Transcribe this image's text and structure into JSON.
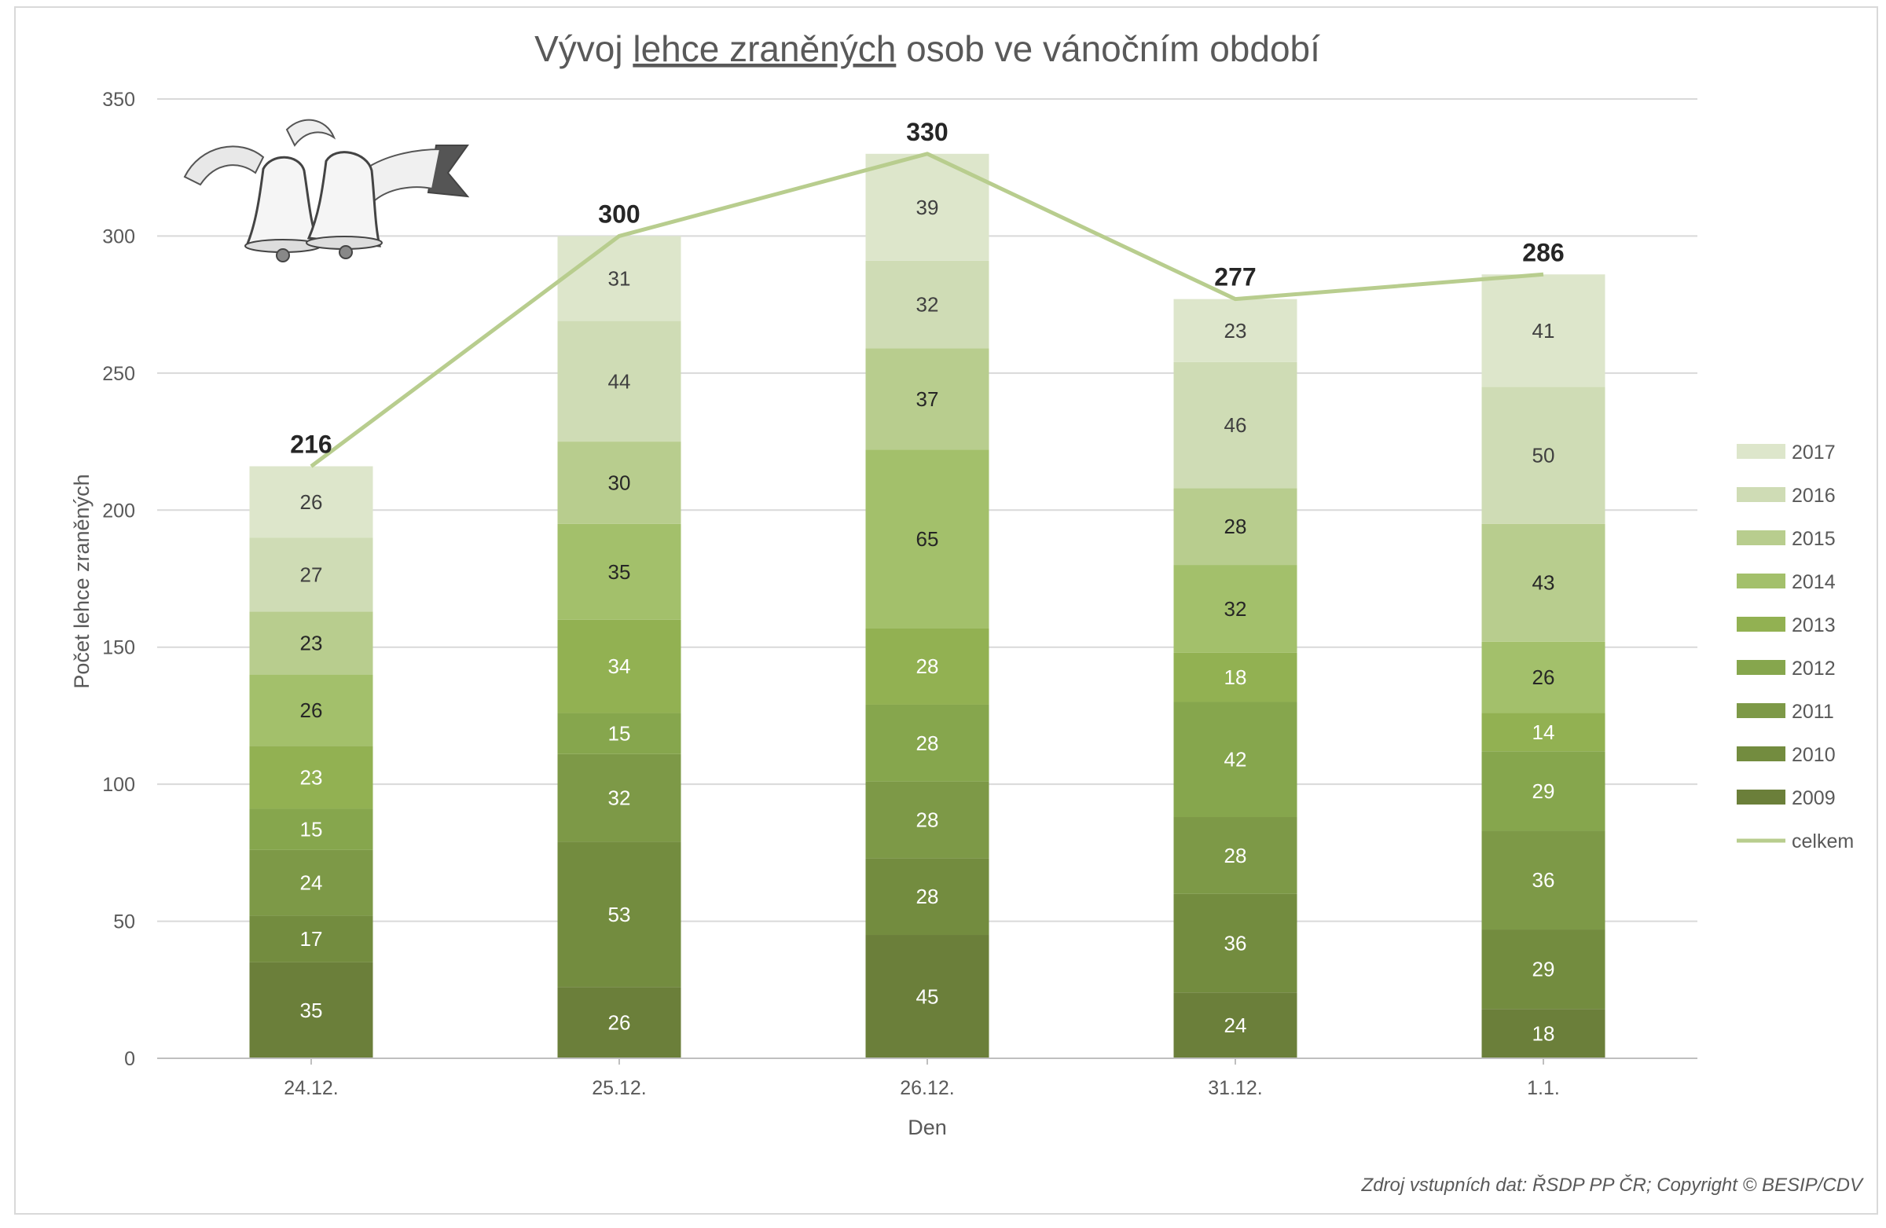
{
  "chart_data": {
    "type": "bar",
    "stacked": true,
    "title": {
      "prefix": "Vývoj ",
      "underlined": "lehce zraněných",
      "suffix": " osob ve vánočním období"
    },
    "xlabel": "Den",
    "ylabel": "Počet lehce zraněných",
    "ylim": [
      0,
      350
    ],
    "yticks": [
      0,
      50,
      100,
      150,
      200,
      250,
      300,
      350
    ],
    "grid": true,
    "legend_position": "right",
    "categories": [
      "24.12.",
      "25.12.",
      "26.12.",
      "31.12.",
      "1.1."
    ],
    "series": [
      {
        "name": "2009",
        "color": "#6b7f3a",
        "label_color": "#ffffff",
        "values": [
          35,
          26,
          45,
          24,
          18
        ]
      },
      {
        "name": "2010",
        "color": "#738c3f",
        "label_color": "#ffffff",
        "values": [
          17,
          53,
          28,
          36,
          29
        ]
      },
      {
        "name": "2011",
        "color": "#7d9947",
        "label_color": "#ffffff",
        "values": [
          24,
          32,
          28,
          28,
          36
        ]
      },
      {
        "name": "2012",
        "color": "#86a64d",
        "label_color": "#ffffff",
        "values": [
          15,
          15,
          28,
          42,
          29
        ]
      },
      {
        "name": "2013",
        "color": "#92b152",
        "label_color": "#ffffff",
        "values": [
          23,
          34,
          28,
          18,
          14
        ]
      },
      {
        "name": "2014",
        "color": "#a3c06b",
        "label_color": "#262626",
        "values": [
          26,
          35,
          65,
          32,
          26
        ]
      },
      {
        "name": "2015",
        "color": "#b8cd8e",
        "label_color": "#262626",
        "values": [
          23,
          30,
          37,
          28,
          43
        ]
      },
      {
        "name": "2016",
        "color": "#cfdcb5",
        "label_color": "#404040",
        "values": [
          27,
          44,
          32,
          46,
          50
        ]
      },
      {
        "name": "2017",
        "color": "#dde6cb",
        "label_color": "#404040",
        "values": [
          26,
          31,
          39,
          23,
          41
        ]
      }
    ],
    "line_series": {
      "name": "celkem",
      "color": "#b8cd8e",
      "values": [
        216,
        300,
        330,
        277,
        286
      ]
    },
    "totals": [
      216,
      300,
      330,
      277,
      286
    ],
    "annotation": "Zdroj vstupních dat: ŘSDP PP ČR; Copyright © BESIP/CDV",
    "decoration": "bells-icon"
  }
}
